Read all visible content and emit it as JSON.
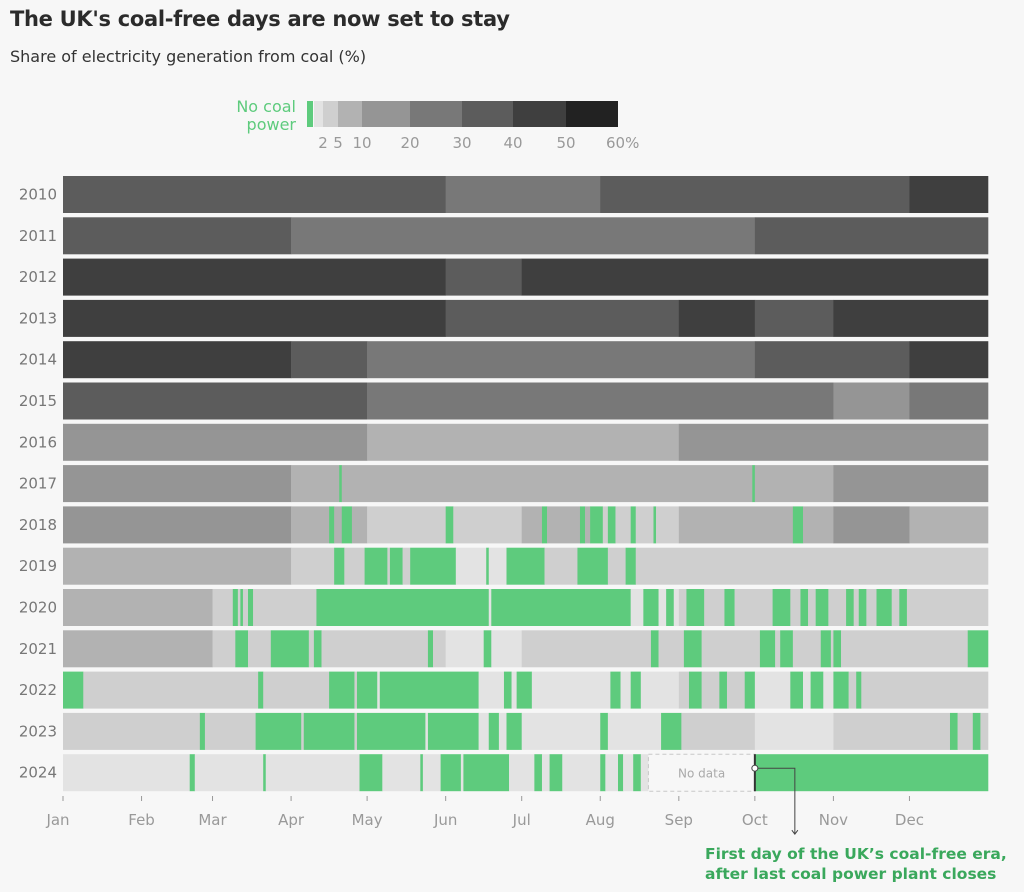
{
  "title": "The UK's coal-free days are now set to stay",
  "subtitle": "Share of electricity generation from coal (%)",
  "chart_data": {
    "type": "heatmap",
    "title": "The UK's coal-free days are now set to stay",
    "subtitle": "Share of electricity generation from coal (%)",
    "legend": {
      "no_coal_label_line1": "No coal",
      "no_coal_label_line2": "power",
      "thresholds": [
        0,
        2,
        5,
        10,
        20,
        30,
        40,
        50,
        60
      ],
      "tick_labels": [
        "2",
        "5",
        "10",
        "20",
        "30",
        "40",
        "50",
        "60%"
      ],
      "colors": [
        "#e3e3e3",
        "#cfcfcf",
        "#b2b2b2",
        "#959595",
        "#787878",
        "#5c5c5c",
        "#3f3f3f",
        "#222222"
      ],
      "no_coal_color": "#5ecb7d",
      "placement": "top"
    },
    "x_tick_labels": [
      "Jan",
      "Feb",
      "Mar",
      "Apr",
      "May",
      "Jun",
      "Jul",
      "Aug",
      "Sep",
      "Oct",
      "Nov",
      "Dec"
    ],
    "years": [
      {
        "year": "2010",
        "monthly_share": [
          36,
          34,
          33,
          32,
          30,
          28,
          29,
          30,
          31,
          34,
          37,
          40
        ],
        "coal_free_days": []
      },
      {
        "year": "2011",
        "monthly_share": [
          34,
          33,
          32,
          28,
          25,
          26,
          27,
          29,
          28,
          32,
          35,
          38
        ],
        "coal_free_days": []
      },
      {
        "year": "2012",
        "monthly_share": [
          45,
          48,
          44,
          46,
          40,
          38,
          40,
          42,
          44,
          45,
          44,
          46
        ],
        "coal_free_days": []
      },
      {
        "year": "2013",
        "monthly_share": [
          44,
          46,
          45,
          44,
          40,
          38,
          39,
          38,
          40,
          39,
          41,
          42
        ],
        "coal_free_days": []
      },
      {
        "year": "2014",
        "monthly_share": [
          42,
          40,
          41,
          38,
          26,
          22,
          25,
          26,
          28,
          36,
          38,
          40
        ],
        "coal_free_days": []
      },
      {
        "year": "2015",
        "monthly_share": [
          38,
          36,
          32,
          30,
          25,
          22,
          24,
          23,
          25,
          22,
          18,
          24
        ],
        "coal_free_days": []
      },
      {
        "year": "2016",
        "monthly_share": [
          18,
          16,
          15,
          12,
          8,
          7,
          9,
          8,
          10,
          14,
          16,
          17
        ],
        "coal_free_days": []
      },
      {
        "year": "2017",
        "monthly_share": [
          15,
          13,
          11,
          8,
          6,
          5,
          6,
          5,
          6,
          8,
          12,
          14
        ],
        "coal_free_days": [
          [
            110,
            110
          ],
          [
            273,
            273
          ]
        ]
      },
      {
        "year": "2018",
        "monthly_share": [
          14,
          15,
          16,
          9,
          4,
          4,
          5,
          4,
          5,
          7,
          10,
          9
        ],
        "coal_free_days": [
          [
            106,
            107
          ],
          [
            111,
            114
          ],
          [
            152,
            154
          ],
          [
            190,
            191
          ],
          [
            205,
            206
          ],
          [
            209,
            213
          ],
          [
            216,
            218
          ],
          [
            225,
            226
          ],
          [
            234,
            234
          ],
          [
            289,
            292
          ]
        ]
      },
      {
        "year": "2019",
        "monthly_share": [
          8,
          6,
          5,
          4,
          2,
          1.5,
          2,
          2,
          2,
          3,
          4,
          4
        ],
        "coal_free_days": [
          [
            108,
            111
          ],
          [
            120,
            128
          ],
          [
            130,
            134
          ],
          [
            138,
            155
          ],
          [
            168,
            168
          ],
          [
            176,
            190
          ],
          [
            204,
            215
          ],
          [
            223,
            226
          ]
        ]
      },
      {
        "year": "2020",
        "monthly_share": [
          6,
          5,
          3,
          2,
          1,
          1,
          1,
          1,
          2,
          3,
          3,
          3
        ],
        "coal_free_days": [
          [
            68,
            69
          ],
          [
            71,
            71
          ],
          [
            74,
            75
          ],
          [
            101,
            168
          ],
          [
            170,
            224
          ],
          [
            230,
            235
          ],
          [
            239,
            241
          ],
          [
            247,
            253
          ],
          [
            262,
            265
          ],
          [
            281,
            287
          ],
          [
            292,
            294
          ],
          [
            298,
            302
          ],
          [
            310,
            312
          ],
          [
            315,
            317
          ],
          [
            322,
            327
          ],
          [
            331,
            333
          ]
        ]
      },
      {
        "year": "2021",
        "monthly_share": [
          6,
          5,
          3,
          2,
          2,
          1.5,
          2,
          2,
          3,
          2,
          2,
          3
        ],
        "coal_free_days": [
          [
            69,
            73
          ],
          [
            83,
            97
          ],
          [
            100,
            102
          ],
          [
            145,
            146
          ],
          [
            167,
            169
          ],
          [
            233,
            235
          ],
          [
            246,
            252
          ],
          [
            276,
            281
          ],
          [
            284,
            288
          ],
          [
            300,
            303
          ],
          [
            305,
            307
          ],
          [
            358,
            365
          ]
        ]
      },
      {
        "year": "2022",
        "monthly_share": [
          2,
          2,
          2,
          2,
          1,
          1,
          1,
          1.5,
          2,
          1.5,
          2,
          3
        ],
        "coal_free_days": [
          [
            1,
            8
          ],
          [
            78,
            79
          ],
          [
            106,
            115
          ],
          [
            117,
            124
          ],
          [
            126,
            164
          ],
          [
            175,
            177
          ],
          [
            180,
            185
          ],
          [
            217,
            220
          ],
          [
            225,
            228
          ],
          [
            248,
            252
          ],
          [
            260,
            262
          ],
          [
            270,
            273
          ],
          [
            288,
            292
          ],
          [
            296,
            300
          ],
          [
            305,
            310
          ],
          [
            314,
            315
          ]
        ]
      },
      {
        "year": "2023",
        "monthly_share": [
          3,
          3,
          2,
          2,
          1,
          1,
          1,
          1.5,
          2,
          1.5,
          2,
          2
        ],
        "coal_free_days": [
          [
            55,
            56
          ],
          [
            77,
            94
          ],
          [
            96,
            115
          ],
          [
            117,
            143
          ],
          [
            145,
            164
          ],
          [
            169,
            172
          ],
          [
            176,
            181
          ],
          [
            213,
            215
          ],
          [
            237,
            244
          ],
          [
            351,
            353
          ],
          [
            360,
            362
          ]
        ]
      },
      {
        "year": "2024",
        "monthly_share": [
          1.5,
          1.5,
          1,
          1,
          0.8,
          0.8,
          0.8,
          0.8,
          0,
          0,
          0,
          0
        ],
        "coal_free_days": [
          [
            51,
            52
          ],
          [
            80,
            80
          ],
          [
            118,
            126
          ],
          [
            142,
            142
          ],
          [
            150,
            157
          ],
          [
            159,
            176
          ],
          [
            187,
            189
          ],
          [
            193,
            197
          ],
          [
            213,
            214
          ],
          [
            220,
            221
          ],
          [
            226,
            228
          ],
          [
            274,
            365
          ]
        ],
        "no_data_days": [
          232,
          273
        ],
        "no_data_label": "No data"
      }
    ],
    "annotation": {
      "line1": "First day of the UK’s coal-free era,",
      "line2": "after last coal power plant closes"
    }
  }
}
